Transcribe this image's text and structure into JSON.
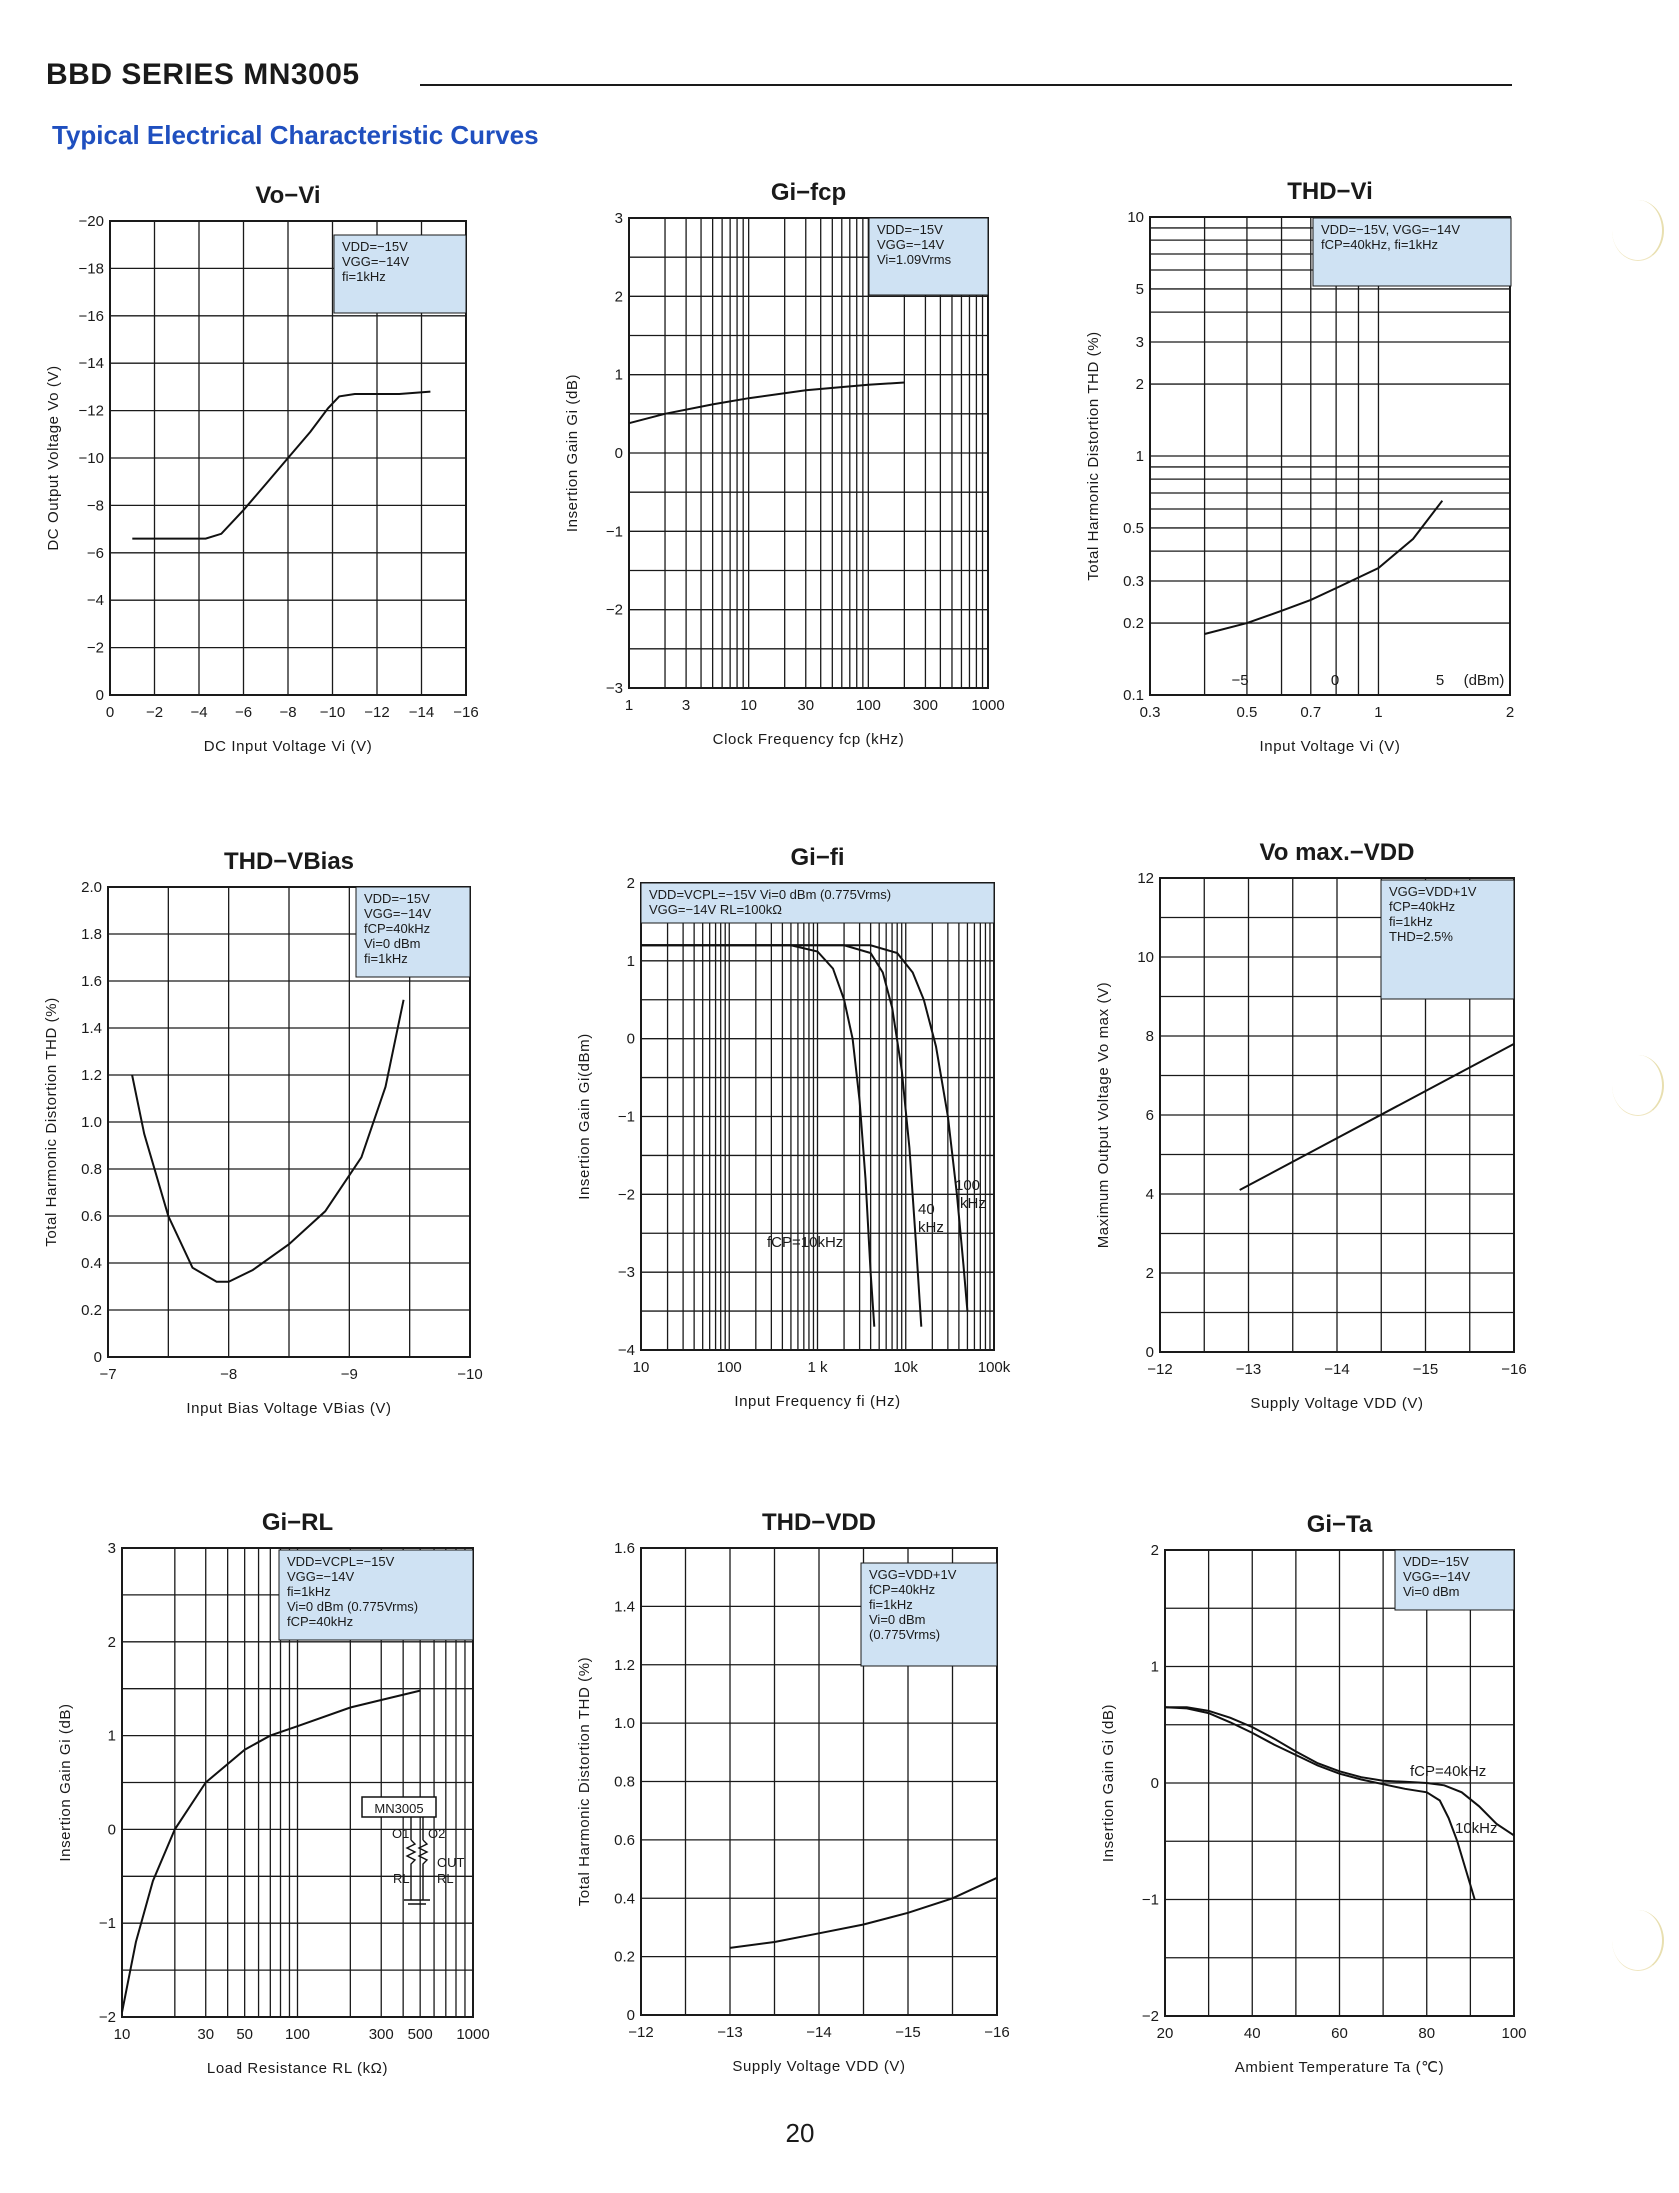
{
  "header": {
    "title": "BBD SERIES MN3005",
    "subtitle": "Typical Electrical Characteristic Curves"
  },
  "page_number": "20",
  "colors": {
    "grid": "#1a1a1a",
    "note_box": "#cfe2f3",
    "accent_text": "#1f4fbf"
  },
  "chart_data": [
    {
      "type": "line",
      "title": "Vo−Vi",
      "xlabel": "DC Input Voltage Vi (V)",
      "ylabel": "DC Output Voltage Vo (V)",
      "xlim": [
        0,
        -16
      ],
      "ylim": [
        0,
        -20
      ],
      "xticks": [
        "0",
        "−2",
        "−4",
        "−6",
        "−8",
        "−10",
        "−12",
        "−14",
        "−16"
      ],
      "yticks": [
        "0",
        "−2",
        "−4",
        "−6",
        "−8",
        "−10",
        "−12",
        "−14",
        "−16",
        "−18",
        "−20"
      ],
      "conditions": [
        "VDD=−15V",
        "VGG=−14V",
        "fi=1kHz"
      ],
      "series": [
        {
          "x": [
            -1,
            -3,
            -4.3,
            -5,
            -6,
            -7,
            -8,
            -9,
            -9.8,
            -10.3,
            -11,
            -12,
            -13,
            -14.4
          ],
          "y": [
            -6.6,
            -6.6,
            -6.6,
            -6.8,
            -7.8,
            -8.9,
            -10,
            -11.1,
            -12.1,
            -12.6,
            -12.7,
            -12.7,
            -12.7,
            -12.8
          ]
        }
      ]
    },
    {
      "type": "line",
      "title": "Gi−fcp",
      "xlabel": "Clock Frequency fcp (kHz)",
      "ylabel": "Insertion Gain Gi (dB)",
      "xscale": "log",
      "xlim": [
        1,
        1000
      ],
      "ylim": [
        -3,
        3
      ],
      "xticks": [
        "1",
        "3",
        "10",
        "30",
        "100",
        "300",
        "1000"
      ],
      "yticks": [
        "−3",
        "−2",
        "−1",
        "0",
        "1",
        "2",
        "3"
      ],
      "conditions": [
        "VDD=−15V",
        "VGG=−14V",
        "Vi=1.09Vrms"
      ],
      "series": [
        {
          "x": [
            1,
            2,
            5,
            10,
            30,
            100,
            200
          ],
          "y": [
            0.38,
            0.5,
            0.62,
            0.7,
            0.8,
            0.87,
            0.9
          ]
        }
      ]
    },
    {
      "type": "line",
      "title": "THD−Vi",
      "xlabel": "Input Voltage Vi (V)",
      "ylabel": "Total Harmonic Distortion THD (%)",
      "xscale": "log",
      "yscale": "log",
      "xlim": [
        0.3,
        2
      ],
      "ylim": [
        0.1,
        10
      ],
      "xticks": [
        "0.3",
        "0.5",
        "0.7",
        "1",
        "2"
      ],
      "yticks": [
        "0.1",
        "0.2",
        "0.3",
        "0.5",
        "1",
        "2",
        "3",
        "5",
        "10"
      ],
      "dbm_ticks": [
        "−5",
        "0",
        "5",
        "(dBm)"
      ],
      "conditions": [
        "VDD=−15V, VGG=−14V",
        "fCP=40kHz, fi=1kHz"
      ],
      "series": [
        {
          "x": [
            0.4,
            0.5,
            0.6,
            0.7,
            0.8,
            1.0,
            1.2,
            1.4
          ],
          "y": [
            0.18,
            0.2,
            0.225,
            0.25,
            0.28,
            0.34,
            0.45,
            0.65
          ]
        }
      ]
    },
    {
      "type": "line",
      "title": "THD−VBias",
      "xlabel": "Input Bias Voltage VBias (V)",
      "ylabel": "Total Harmonic Distortion THD (%)",
      "xlim": [
        -7,
        -10
      ],
      "ylim": [
        0,
        2.0
      ],
      "xticks": [
        "−7",
        "−8",
        "−9",
        "−10"
      ],
      "yticks": [
        "0",
        "0.2",
        "0.4",
        "0.6",
        "0.8",
        "1.0",
        "1.2",
        "1.4",
        "1.6",
        "1.8",
        "2.0"
      ],
      "conditions": [
        "VDD=−15V",
        "VGG=−14V",
        "fCP=40kHz",
        "Vi=0 dBm",
        "fi=1kHz"
      ],
      "series": [
        {
          "x": [
            -7.2,
            -7.3,
            -7.5,
            -7.7,
            -7.9,
            -8.0,
            -8.2,
            -8.5,
            -8.8,
            -9.1,
            -9.3,
            -9.45
          ],
          "y": [
            1.2,
            0.95,
            0.6,
            0.38,
            0.32,
            0.32,
            0.37,
            0.48,
            0.62,
            0.85,
            1.15,
            1.52
          ]
        }
      ]
    },
    {
      "type": "line",
      "title": "Gi−fi",
      "xlabel": "Input Frequency fi (Hz)",
      "ylabel": "Insertion Gain Gi(dBm)",
      "xscale": "log",
      "xlim": [
        10,
        100000
      ],
      "ylim": [
        -4,
        2
      ],
      "xticks": [
        "10",
        "100",
        "1 k",
        "10k",
        "100k"
      ],
      "yticks": [
        "−4",
        "−3",
        "−2",
        "−1",
        "0",
        "1",
        "2"
      ],
      "conditions": [
        "VDD=VCPL=−15V Vi=0 dBm (0.775Vrms)",
        "VGG=−14V RL=100kΩ"
      ],
      "series": [
        {
          "name": "fCP=10kHz",
          "x": [
            10,
            500,
            1000,
            1500,
            2000,
            2500,
            3000,
            3500,
            4000,
            4400
          ],
          "y": [
            1.2,
            1.2,
            1.12,
            0.9,
            0.5,
            0,
            -0.8,
            -1.8,
            -3.0,
            -3.7
          ]
        },
        {
          "name": "40 kHz",
          "x": [
            10,
            2000,
            4000,
            5500,
            7000,
            9000,
            11000,
            13000,
            15000
          ],
          "y": [
            1.2,
            1.2,
            1.1,
            0.85,
            0.4,
            -0.4,
            -1.4,
            -2.6,
            -3.7
          ]
        },
        {
          "name": "100 kHz",
          "x": [
            10,
            4000,
            8000,
            12000,
            16000,
            22000,
            30000,
            38000,
            45000,
            50000
          ],
          "y": [
            1.2,
            1.2,
            1.1,
            0.85,
            0.5,
            -0.1,
            -1.0,
            -2.0,
            -2.9,
            -3.5
          ]
        }
      ]
    },
    {
      "type": "line",
      "title": "Vo max.−VDD",
      "xlabel": "Supply Voltage VDD (V)",
      "ylabel": "Maximum Output Voltage Vo max (V)",
      "xlim": [
        -12,
        -16
      ],
      "ylim": [
        0,
        12
      ],
      "xticks": [
        "−12",
        "−13",
        "−14",
        "−15",
        "−16"
      ],
      "yticks": [
        "0",
        "2",
        "4",
        "6",
        "8",
        "10",
        "12"
      ],
      "conditions": [
        "VGG=VDD+1V",
        "fCP=40kHz",
        "fi=1kHz",
        "THD=2.5%"
      ],
      "series": [
        {
          "x": [
            -12.9,
            -16
          ],
          "y": [
            4.1,
            7.8
          ]
        }
      ]
    },
    {
      "type": "line",
      "title": "Gi−RL",
      "xlabel": "Load Resistance RL (kΩ)",
      "ylabel": "Insertion Gain Gi (dB)",
      "xscale": "log",
      "xlim": [
        10,
        1000
      ],
      "ylim": [
        -2,
        3
      ],
      "xticks": [
        "10",
        "30",
        "50",
        "100",
        "300",
        "500",
        "1000"
      ],
      "yticks": [
        "−2",
        "−1",
        "0",
        "1",
        "2",
        "3"
      ],
      "conditions": [
        "VDD=VCPL=−15V",
        "VGG=−14V",
        "fi=1kHz",
        "Vi=0 dBm (0.775Vrms)",
        "fCP=40kHz"
      ],
      "inset": {
        "chip": "MN3005",
        "pin1": "O1",
        "pin2": "O2",
        "out": "OUT",
        "load1": "RL",
        "load2": "RL"
      },
      "series": [
        {
          "x": [
            10,
            12,
            15,
            20,
            30,
            50,
            70,
            100,
            200,
            300,
            500
          ],
          "y": [
            -1.95,
            -1.2,
            -0.55,
            0,
            0.5,
            0.85,
            1.0,
            1.1,
            1.3,
            1.38,
            1.48
          ]
        }
      ]
    },
    {
      "type": "line",
      "title": "THD−VDD",
      "xlabel": "Supply Voltage VDD (V)",
      "ylabel": "Total Harmonic Distortion THD (%)",
      "xlim": [
        -12,
        -16
      ],
      "ylim": [
        0,
        1.6
      ],
      "xticks": [
        "−12",
        "−13",
        "−14",
        "−15",
        "−16"
      ],
      "yticks": [
        "0",
        "0.2",
        "0.4",
        "0.6",
        "0.8",
        "1.0",
        "1.2",
        "1.4",
        "1.6"
      ],
      "conditions": [
        "VGG=VDD+1V",
        "fCP=40kHz",
        "fi=1kHz",
        "Vi=0 dBm",
        "(0.775Vrms)"
      ],
      "series": [
        {
          "x": [
            -13,
            -13.5,
            -14,
            -14.5,
            -15,
            -15.5,
            -16
          ],
          "y": [
            0.23,
            0.25,
            0.28,
            0.31,
            0.35,
            0.4,
            0.47
          ]
        }
      ]
    },
    {
      "type": "line",
      "title": "Gi−Ta",
      "xlabel": "Ambient Temperature Ta (℃)",
      "ylabel": "Insertion Gain Gi (dB)",
      "xlim": [
        20,
        100
      ],
      "ylim": [
        -2,
        2
      ],
      "xticks": [
        "20",
        "40",
        "60",
        "80",
        "100"
      ],
      "yticks": [
        "−2",
        "−1",
        "0",
        "1",
        "2"
      ],
      "conditions": [
        "VDD=−15V",
        "VGG=−14V",
        "Vi=0 dBm"
      ],
      "series": [
        {
          "name": "fCP=40kHz",
          "x": [
            20,
            25,
            30,
            35,
            40,
            45,
            50,
            55,
            60,
            65,
            70,
            75,
            80,
            84,
            88,
            92,
            96,
            100
          ],
          "y": [
            0.65,
            0.65,
            0.62,
            0.56,
            0.48,
            0.38,
            0.27,
            0.17,
            0.1,
            0.05,
            0.02,
            0.01,
            0.0,
            -0.02,
            -0.08,
            -0.2,
            -0.35,
            -0.45
          ]
        },
        {
          "name": "10kHz",
          "x": [
            20,
            25,
            30,
            35,
            40,
            45,
            50,
            55,
            60,
            65,
            70,
            75,
            80,
            83,
            85,
            87,
            89,
            91
          ],
          "y": [
            0.65,
            0.64,
            0.6,
            0.52,
            0.43,
            0.33,
            0.24,
            0.15,
            0.08,
            0.03,
            -0.01,
            -0.05,
            -0.08,
            -0.15,
            -0.3,
            -0.5,
            -0.75,
            -1.0
          ]
        }
      ]
    }
  ]
}
